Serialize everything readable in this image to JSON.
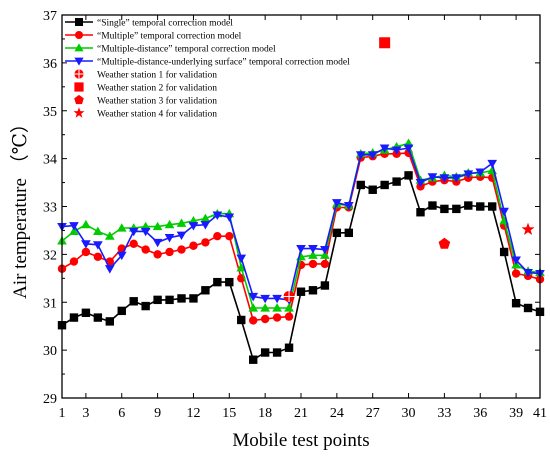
{
  "chart_data": {
    "type": "line",
    "xlabel": "Mobile test points",
    "ylabel": "Air temperature （℃）",
    "xlim": [
      1,
      41
    ],
    "ylim": [
      29,
      37
    ],
    "x_ticks": [
      1,
      3,
      6,
      9,
      12,
      15,
      18,
      21,
      24,
      27,
      30,
      33,
      36,
      39,
      41
    ],
    "y_ticks": [
      29,
      30,
      31,
      32,
      33,
      34,
      35,
      36,
      37
    ],
    "grid": false,
    "legend_position": "top-left",
    "x": [
      1,
      2,
      3,
      4,
      5,
      6,
      7,
      8,
      9,
      10,
      11,
      12,
      13,
      14,
      15,
      16,
      17,
      18,
      19,
      20,
      21,
      22,
      23,
      24,
      25,
      26,
      27,
      28,
      29,
      30,
      31,
      32,
      33,
      34,
      35,
      36,
      37,
      38,
      39,
      40,
      41
    ],
    "series": [
      {
        "name": "“Single” temporal correction model",
        "color": "#000000",
        "marker": "square",
        "values": [
          30.52,
          30.68,
          30.78,
          30.68,
          30.6,
          30.82,
          31.02,
          30.92,
          31.05,
          31.05,
          31.08,
          31.08,
          31.25,
          31.42,
          31.42,
          30.63,
          29.8,
          29.95,
          29.95,
          30.05,
          31.22,
          31.25,
          31.35,
          32.45,
          32.45,
          33.45,
          33.35,
          33.45,
          33.52,
          33.65,
          32.88,
          33.02,
          32.95,
          32.95,
          33.02,
          33.0,
          33.0,
          32.05,
          30.98,
          30.88,
          30.8
        ]
      },
      {
        "name": "“Multiple” temporal correction model",
        "color": "#ff0000",
        "marker": "circle",
        "values": [
          31.7,
          31.85,
          32.05,
          31.95,
          31.85,
          32.12,
          32.22,
          32.1,
          32.0,
          32.05,
          32.1,
          32.18,
          32.25,
          32.38,
          32.38,
          31.5,
          30.62,
          30.65,
          30.68,
          30.7,
          31.78,
          31.8,
          31.8,
          32.98,
          32.98,
          34.02,
          34.05,
          34.1,
          34.1,
          34.12,
          33.42,
          33.52,
          33.55,
          33.52,
          33.6,
          33.62,
          33.6,
          32.6,
          31.6,
          31.55,
          31.48
        ]
      },
      {
        "name": "“Multiple-distance” temporal correction model",
        "color": "#00cc00",
        "marker": "triangle-up",
        "values": [
          32.28,
          32.48,
          32.62,
          32.48,
          32.38,
          32.55,
          32.55,
          32.58,
          32.58,
          32.62,
          32.65,
          32.7,
          32.75,
          32.85,
          32.85,
          31.72,
          30.88,
          30.88,
          30.88,
          30.88,
          31.95,
          31.98,
          31.98,
          33.05,
          33.02,
          34.1,
          34.12,
          34.18,
          34.25,
          34.32,
          33.55,
          33.6,
          33.65,
          33.62,
          33.7,
          33.7,
          33.75,
          32.7,
          31.78,
          31.65,
          31.62
        ]
      },
      {
        "name": "“Multiple-distance-underlying surface” temporal correction model",
        "color": "#1a1aff",
        "marker": "triangle-down",
        "values": [
          32.58,
          32.6,
          32.22,
          32.2,
          31.7,
          31.98,
          32.48,
          32.48,
          32.25,
          32.35,
          32.4,
          32.6,
          32.62,
          32.82,
          32.78,
          31.92,
          31.12,
          31.08,
          31.08,
          31.05,
          32.12,
          32.12,
          32.1,
          33.08,
          33.02,
          34.08,
          34.08,
          34.22,
          34.18,
          34.22,
          33.5,
          33.62,
          33.6,
          33.6,
          33.68,
          33.72,
          33.9,
          32.9,
          31.88,
          31.62,
          31.6
        ]
      },
      {
        "name": "Weather station 1 for validation",
        "color": "#ff0000",
        "marker": "circle-cross",
        "points": [
          {
            "x": 20,
            "y": 31.12
          }
        ]
      },
      {
        "name": "Weather station 2 for validation",
        "color": "#ff0000",
        "marker": "square",
        "points": [
          {
            "x": 28,
            "y": 36.42
          }
        ]
      },
      {
        "name": "Weather station 3 for validation",
        "color": "#ff0000",
        "marker": "pentagon",
        "points": [
          {
            "x": 33,
            "y": 32.22
          }
        ]
      },
      {
        "name": "Weather station 4 for validation",
        "color": "#ff0000",
        "marker": "star",
        "points": [
          {
            "x": 40,
            "y": 32.52
          }
        ]
      }
    ]
  }
}
